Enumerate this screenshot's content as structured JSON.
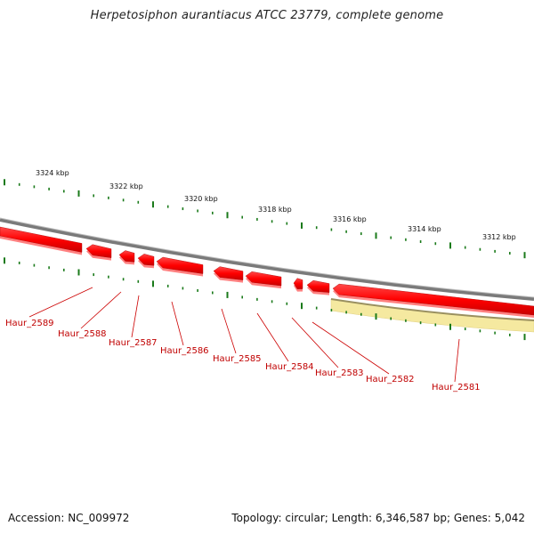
{
  "title": "Herpetosiphon aurantiacus ATCC 23779, complete genome",
  "scale_labels": [
    "3324 kbp",
    "3322 kbp",
    "3320 kbp",
    "3318 kbp",
    "3316 kbp",
    "3314 kbp",
    "3312 kbp"
  ],
  "genes": [
    {
      "name": "Haur_2589",
      "strand": "-"
    },
    {
      "name": "Haur_2588",
      "strand": "-"
    },
    {
      "name": "Haur_2587",
      "strand": "-"
    },
    {
      "name": "Haur_2586",
      "strand": "-"
    },
    {
      "name": "Haur_2585",
      "strand": "-"
    },
    {
      "name": "Haur_2584",
      "strand": "-"
    },
    {
      "name": "Haur_2583",
      "strand": "-"
    },
    {
      "name": "Haur_2582",
      "strand": "-"
    },
    {
      "name": "Haur_2581",
      "strand": "-"
    }
  ],
  "colors": {
    "gene": "#ff0000",
    "gene_dark": "#aa0000",
    "backbone": "#888888",
    "highlight": "#f5e9a0",
    "ticks": "#1a7a1a",
    "label": "#c00000"
  },
  "footer": {
    "accession": "Accession: NC_009972",
    "summary": "Topology: circular; Length: 6,346,587 bp; Genes: 5,042"
  }
}
